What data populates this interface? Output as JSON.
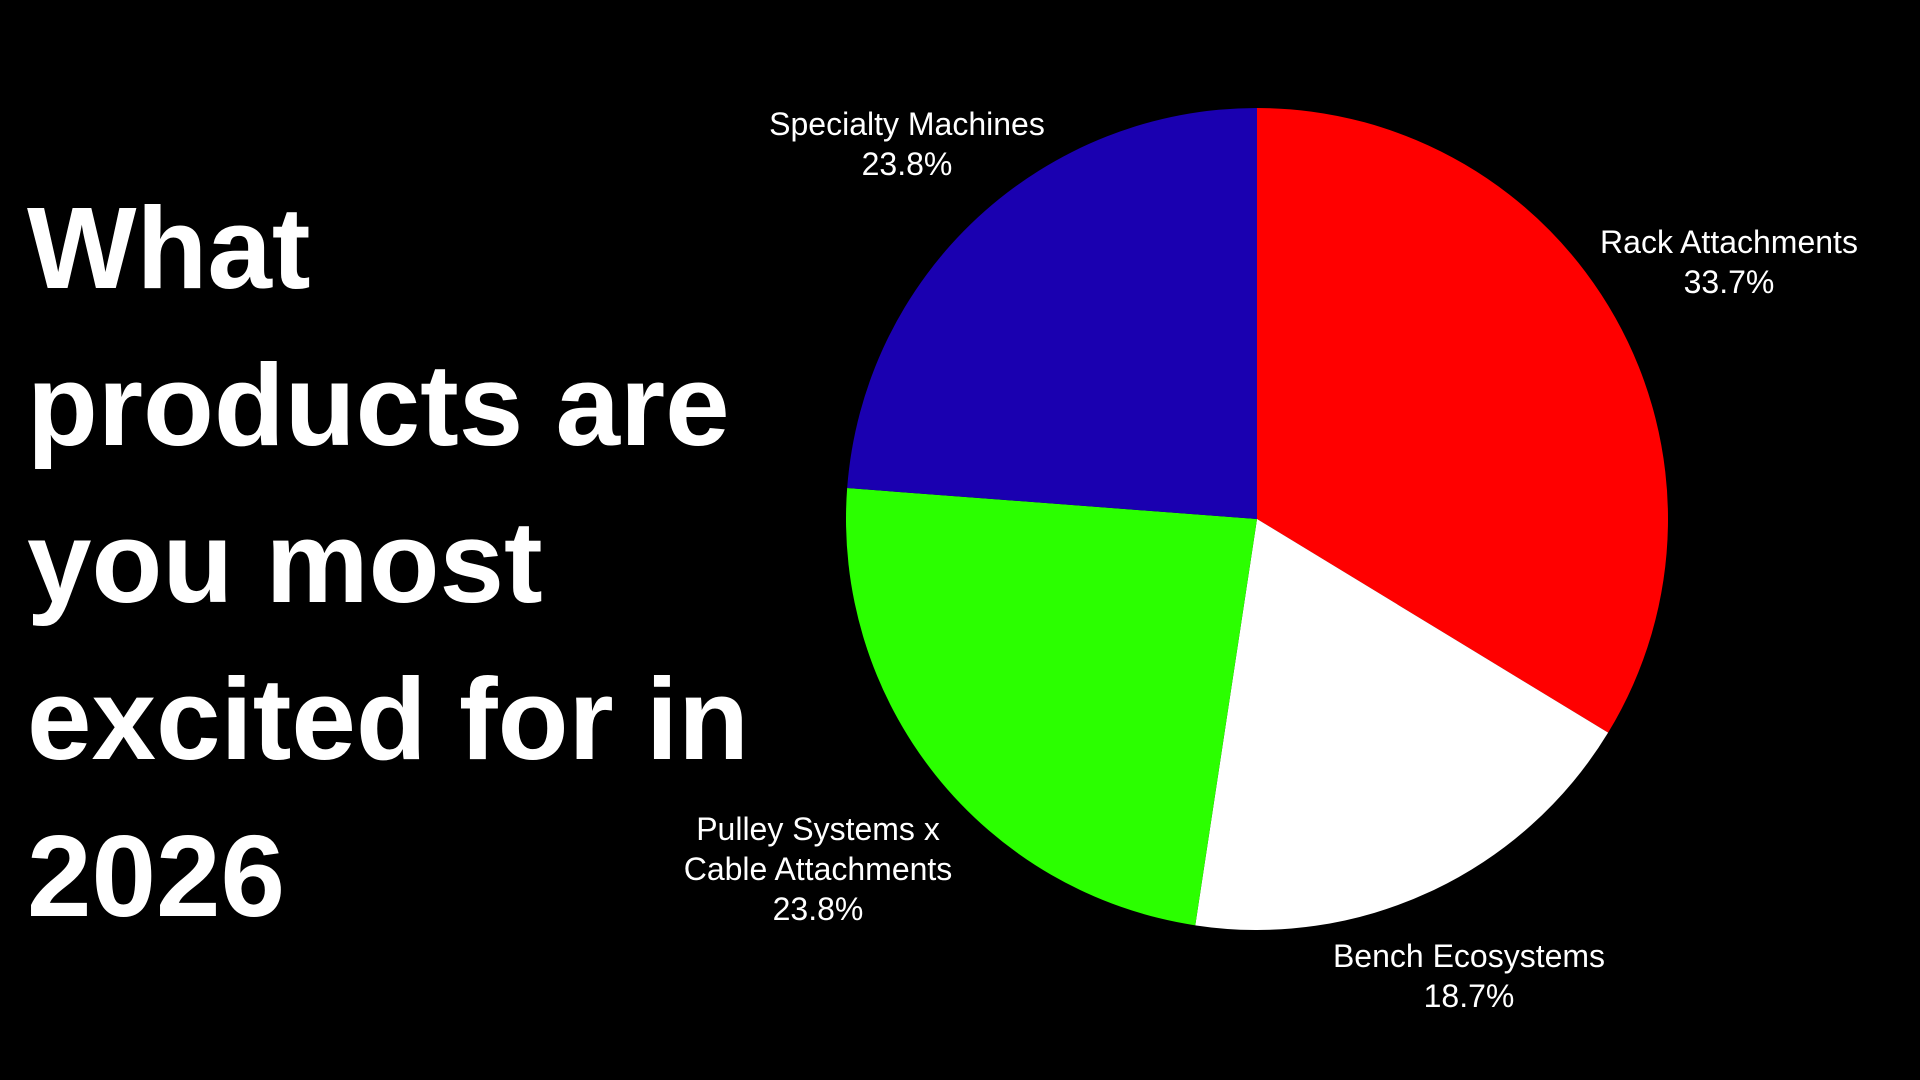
{
  "chart_data": {
    "type": "pie",
    "title": "What products are you most excited for in 2026",
    "categories": [
      "Rack Attachments",
      "Bench Ecosystems",
      "Pulley Systems x Cable Attachments",
      "Specialty Machines"
    ],
    "values": [
      33.7,
      18.7,
      23.8,
      23.8
    ],
    "value_labels": [
      "33.7%",
      "18.7%",
      "23.8%",
      "23.8%"
    ],
    "colors": [
      "#ff0000",
      "#ffffff",
      "#2bff00",
      "#1a00b0"
    ]
  }
}
